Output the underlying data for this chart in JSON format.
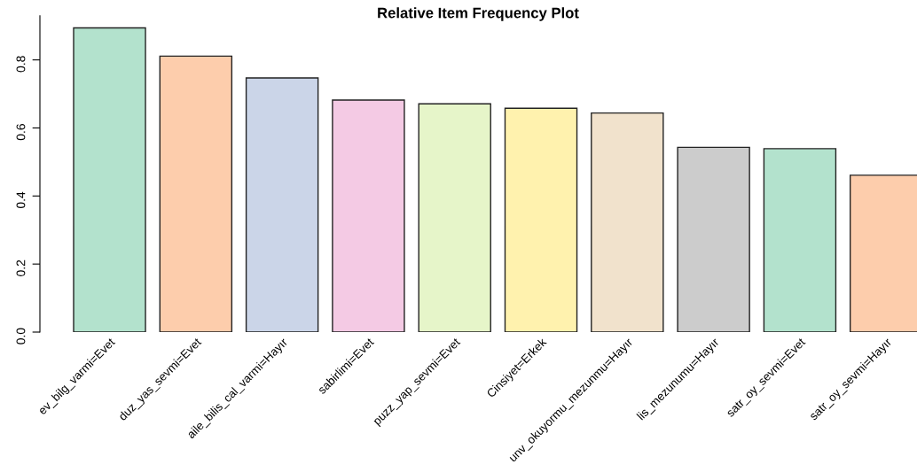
{
  "chart_data": {
    "type": "bar",
    "title": "Relative Item Frequency Plot",
    "categories": [
      "ev_bilg_varmi=Evet",
      "duz_yas_sevmi=Evet",
      "aile_bilis_cal_varmi=Hayır",
      "sabirlimi=Evet",
      "puzz_yap_sevmi=Evet",
      "Cinsiyet=Erkek",
      "unv_okuyormu_mezunmu=Hayır",
      "lis_mezunumu=Hayır",
      "satr_oy_sevmi=Evet",
      "satr_oy_sevmi=Hayır"
    ],
    "values": [
      0.894,
      0.811,
      0.747,
      0.682,
      0.671,
      0.658,
      0.644,
      0.543,
      0.539,
      0.461
    ],
    "colors": [
      "#b3e2cd",
      "#fdcdac",
      "#cbd5e8",
      "#f4cae4",
      "#e6f5c9",
      "#fff2ae",
      "#f1e2cc",
      "#cccccc",
      "#b3e2cd",
      "#fdcdac"
    ],
    "ylim": [
      0,
      0.93
    ],
    "yticks": [
      {
        "value": 0,
        "label": "0.0"
      },
      {
        "value": 0.2,
        "label": "0.2"
      },
      {
        "value": 0.4,
        "label": "0.4"
      },
      {
        "value": 0.6,
        "label": "0.6"
      },
      {
        "value": 0.8,
        "label": "0.8"
      }
    ],
    "grid": false
  }
}
